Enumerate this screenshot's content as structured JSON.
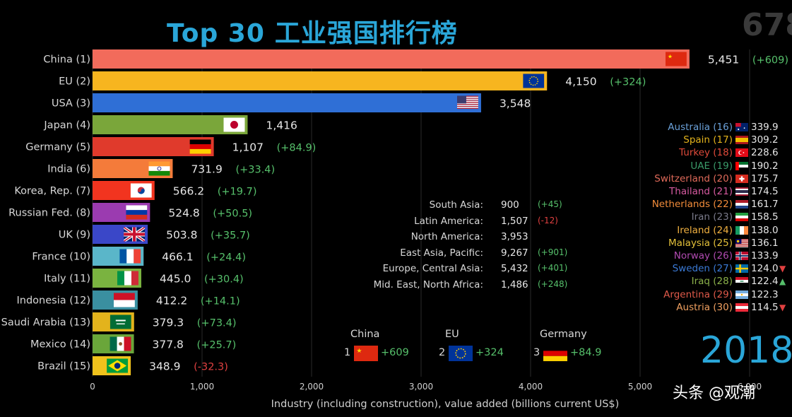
{
  "title": {
    "part1": "Top 30",
    "part2": "工业强国排行榜"
  },
  "counter": "678",
  "year": "2018",
  "watermark": "头条 @观潮",
  "colors": {
    "accent": "#2aa6d8",
    "positive": "#56c06b",
    "negative": "#e04040"
  },
  "chart_data": {
    "type": "bar",
    "orientation": "horizontal",
    "xlabel": "Industry (including construction), value added (billions current US$)",
    "xlim": [
      0,
      6000
    ],
    "xticks": [
      0,
      1000,
      2000,
      3000,
      4000,
      5000,
      6000
    ],
    "xtick_labels": [
      "0",
      "1,000",
      "2,000",
      "3,000",
      "4,000",
      "5,000",
      "6,000"
    ],
    "categories": [
      "China (1)",
      "EU (2)",
      "USA (3)",
      "Japan (4)",
      "Germany (5)",
      "India (6)",
      "Korea, Rep. (7)",
      "Russian Fed. (8)",
      "UK (9)",
      "France (10)",
      "Italy (11)",
      "Indonesia (12)",
      "Saudi Arabia (13)",
      "Mexico (14)",
      "Brazil (15)"
    ],
    "values": [
      5451,
      4150,
      3548,
      1416,
      1107,
      731.9,
      566.2,
      524.8,
      503.8,
      466.1,
      445.0,
      412.2,
      379.3,
      377.8,
      348.9
    ],
    "value_labels": [
      "5,451",
      "4,150",
      "3,548",
      "1,416",
      "1,107",
      "731.9",
      "566.2",
      "524.8",
      "503.8",
      "466.1",
      "445.0",
      "412.2",
      "379.3",
      "377.8",
      "348.9"
    ],
    "changes": [
      "(+609)",
      "(+324)",
      "",
      "",
      "(+84.9)",
      "(+33.4)",
      "(+19.7)",
      "(+50.5)",
      "(+35.7)",
      "(+24.4)",
      "(+30.4)",
      "(+14.1)",
      "(+73.4)",
      "(+25.7)",
      "(-32.3)"
    ],
    "bar_colors": [
      "#f26b5b",
      "#f7b51f",
      "#2f6fd6",
      "#7aa63a",
      "#e03a2c",
      "#f47b3a",
      "#f2341f",
      "#9b3bb0",
      "#3a47c8",
      "#5ab6c9",
      "#7ab340",
      "#3a8fa0",
      "#e3b31c",
      "#6aa63a",
      "#f0c21c"
    ],
    "flags": [
      "china-flag",
      "eu-flag",
      "usa-flag",
      "japan-flag",
      "germany-flag",
      "india-flag",
      "korea-flag",
      "russia-flag",
      "uk-flag",
      "france-flag",
      "italy-flag",
      "indonesia-flag",
      "saudi-flag",
      "mexico-flag",
      "brazil-flag"
    ]
  },
  "right_list": [
    {
      "name": "Australia (16)",
      "value": "339.9",
      "color": "#6aa0d8",
      "flag": "australia-flag",
      "arrow": ""
    },
    {
      "name": "Spain (17)",
      "value": "309.2",
      "color": "#e3b31c",
      "flag": "spain-flag",
      "arrow": ""
    },
    {
      "name": "Turkey (18)",
      "value": "228.6",
      "color": "#e04a3a",
      "flag": "turkey-flag",
      "arrow": ""
    },
    {
      "name": "UAE (19)",
      "value": "190.2",
      "color": "#3a9a6a",
      "flag": "uae-flag",
      "arrow": ""
    },
    {
      "name": "Switzerland (20)",
      "value": "175.7",
      "color": "#e06a5a",
      "flag": "switzerland-flag",
      "arrow": ""
    },
    {
      "name": "Thailand (21)",
      "value": "174.5",
      "color": "#d65aa0",
      "flag": "thailand-flag",
      "arrow": ""
    },
    {
      "name": "Netherlands (22)",
      "value": "161.7",
      "color": "#f28c3a",
      "flag": "netherlands-flag",
      "arrow": ""
    },
    {
      "name": "Iran (23)",
      "value": "158.5",
      "color": "#7a7a8a",
      "flag": "iran-flag",
      "arrow": ""
    },
    {
      "name": "Ireland (24)",
      "value": "138.0",
      "color": "#f0b040",
      "flag": "ireland-flag",
      "arrow": ""
    },
    {
      "name": "Malaysia (25)",
      "value": "136.1",
      "color": "#e3c03a",
      "flag": "malaysia-flag",
      "arrow": ""
    },
    {
      "name": "Norway (26)",
      "value": "133.9",
      "color": "#b04ab0",
      "flag": "norway-flag",
      "arrow": ""
    },
    {
      "name": "Sweden (27)",
      "value": "124.0",
      "color": "#3a7ad6",
      "flag": "sweden-flag",
      "arrow": "▼"
    },
    {
      "name": "Iraq (28)",
      "value": "122.4",
      "color": "#8ab04a",
      "flag": "iraq-flag",
      "arrow": "▲"
    },
    {
      "name": "Argentina (29)",
      "value": "122.3",
      "color": "#e05a4a",
      "flag": "argentina-flag",
      "arrow": ""
    },
    {
      "name": "Austria (30)",
      "value": "114.5",
      "color": "#f0a060",
      "flag": "austria-flag",
      "arrow": "▼"
    }
  ],
  "regions": [
    {
      "name": "South Asia:",
      "value": "900",
      "change": "(+45)",
      "change_color": "#56c06b"
    },
    {
      "name": "Latin America:",
      "value": "1,507",
      "change": "(-12)",
      "change_color": "#e04040"
    },
    {
      "name": "North America:",
      "value": "3,953",
      "change": "",
      "change_color": "#56c06b"
    },
    {
      "name": "East Asia, Pacific:",
      "value": "9,267",
      "change": "(+901)",
      "change_color": "#56c06b"
    },
    {
      "name": "Europe, Central Asia:",
      "value": "5,432",
      "change": "(+401)",
      "change_color": "#56c06b"
    },
    {
      "name": "Mid. East, North Africa:",
      "value": "1,486",
      "change": "(+248)",
      "change_color": "#56c06b"
    }
  ],
  "top_gainers": [
    {
      "name": "China",
      "rank": "1",
      "value": "+609",
      "flag": "china-flag"
    },
    {
      "name": "EU",
      "rank": "2",
      "value": "+324",
      "flag": "eu-flag"
    },
    {
      "name": "Germany",
      "rank": "3",
      "value": "+84.9",
      "flag": "germany-flag"
    }
  ]
}
